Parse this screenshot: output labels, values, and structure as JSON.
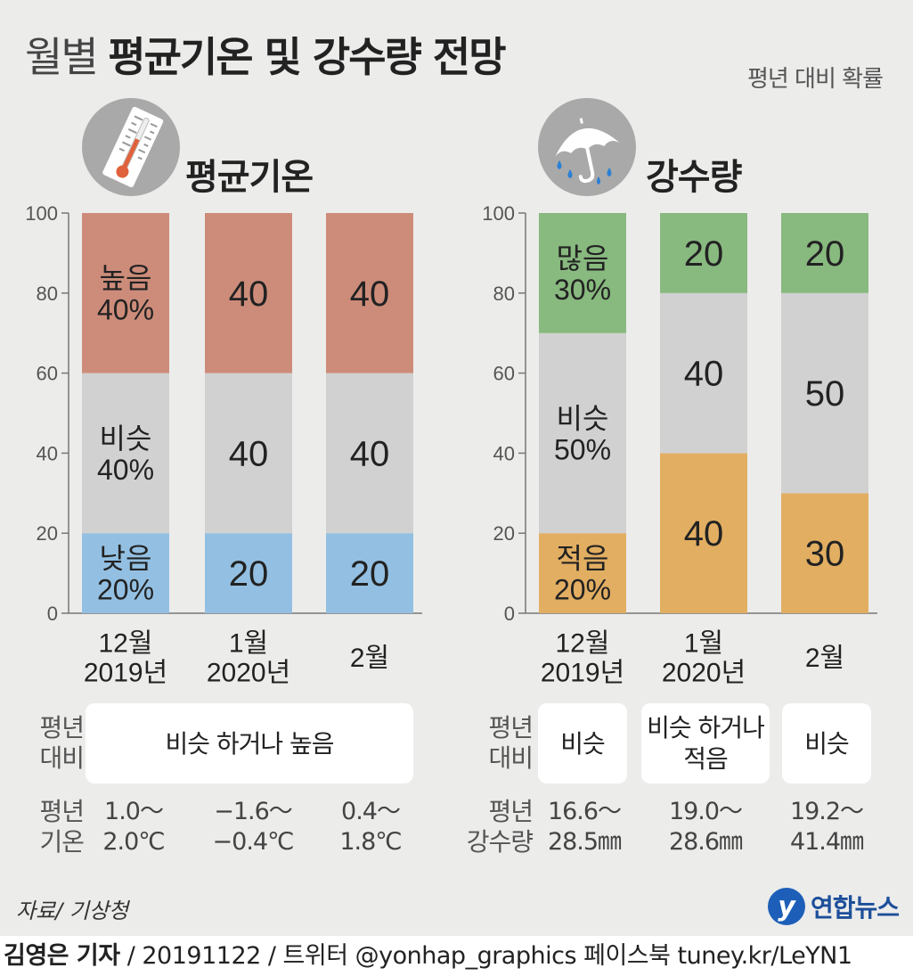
{
  "title": {
    "light": "월별",
    "bold": "평균기온 및 강수량 전망"
  },
  "subtitle": "평년 대비 확률",
  "colors": {
    "high": "#cd8c7a",
    "similar": "#d1d1d1",
    "low": "#93c0e2",
    "many": "#88b97f",
    "few": "#e2ae62",
    "axis": "#777777",
    "background": "#ececeb"
  },
  "icons": {
    "temperature": "thermometer-icon",
    "precipitation": "umbrella-rain-icon"
  },
  "chart_data": [
    {
      "type": "bar",
      "stacked": true,
      "title": "평균기온",
      "categories": [
        "12월\n2019년",
        "1월\n2020년",
        "2월"
      ],
      "yticks": [
        "0",
        "20",
        "40",
        "60",
        "80",
        "100"
      ],
      "ylim": [
        0,
        100
      ],
      "series": [
        {
          "name": "낮음",
          "color": "#93c0e2",
          "values": [
            20,
            20,
            20
          ],
          "labels": [
            "낮음\n20%",
            "20",
            "20"
          ]
        },
        {
          "name": "비슷",
          "color": "#d1d1d1",
          "values": [
            40,
            40,
            40
          ],
          "labels": [
            "비슷\n40%",
            "40",
            "40"
          ]
        },
        {
          "name": "높음",
          "color": "#cd8c7a",
          "values": [
            40,
            40,
            40
          ],
          "labels": [
            "높음\n40%",
            "40",
            "40"
          ]
        }
      ]
    },
    {
      "type": "bar",
      "stacked": true,
      "title": "강수량",
      "categories": [
        "12월\n2019년",
        "1월\n2020년",
        "2월"
      ],
      "yticks": [
        "0",
        "20",
        "40",
        "60",
        "80",
        "100"
      ],
      "ylim": [
        0,
        100
      ],
      "series": [
        {
          "name": "적음",
          "color": "#e2ae62",
          "values": [
            20,
            40,
            30
          ],
          "labels": [
            "적음\n20%",
            "40",
            "30"
          ]
        },
        {
          "name": "비슷",
          "color": "#d1d1d1",
          "values": [
            50,
            40,
            50
          ],
          "labels": [
            "비슷\n50%",
            "40",
            "50"
          ]
        },
        {
          "name": "많음",
          "color": "#88b97f",
          "values": [
            30,
            20,
            20
          ],
          "labels": [
            "많음\n30%",
            "20",
            "20"
          ]
        }
      ]
    }
  ],
  "temp_table": {
    "compare_label": "평년\n대비",
    "compare_boxes": [
      "비슷 하거나 높음"
    ],
    "normal_label": "평년\n기온",
    "normals": [
      "1.0～\n2.0℃",
      "−1.6～\n−0.4℃",
      "0.4～\n1.8℃"
    ]
  },
  "rain_table": {
    "compare_label": "평년\n대비",
    "compare_boxes": [
      "비슷",
      "비슷 하거나\n적음",
      "비슷"
    ],
    "normal_label": "평년\n강수량",
    "normals": [
      "16.6～\n28.5㎜",
      "19.0～\n28.6㎜",
      "19.2～\n41.4㎜"
    ]
  },
  "source": "자료/ 기상청",
  "logo": {
    "mark": "y",
    "text": "연합뉴스"
  },
  "credit": {
    "author": "김영은 기자",
    "rest": " / 20191122 / 트위터 @yonhap_graphics  페이스북 tuney.kr/LeYN1"
  }
}
